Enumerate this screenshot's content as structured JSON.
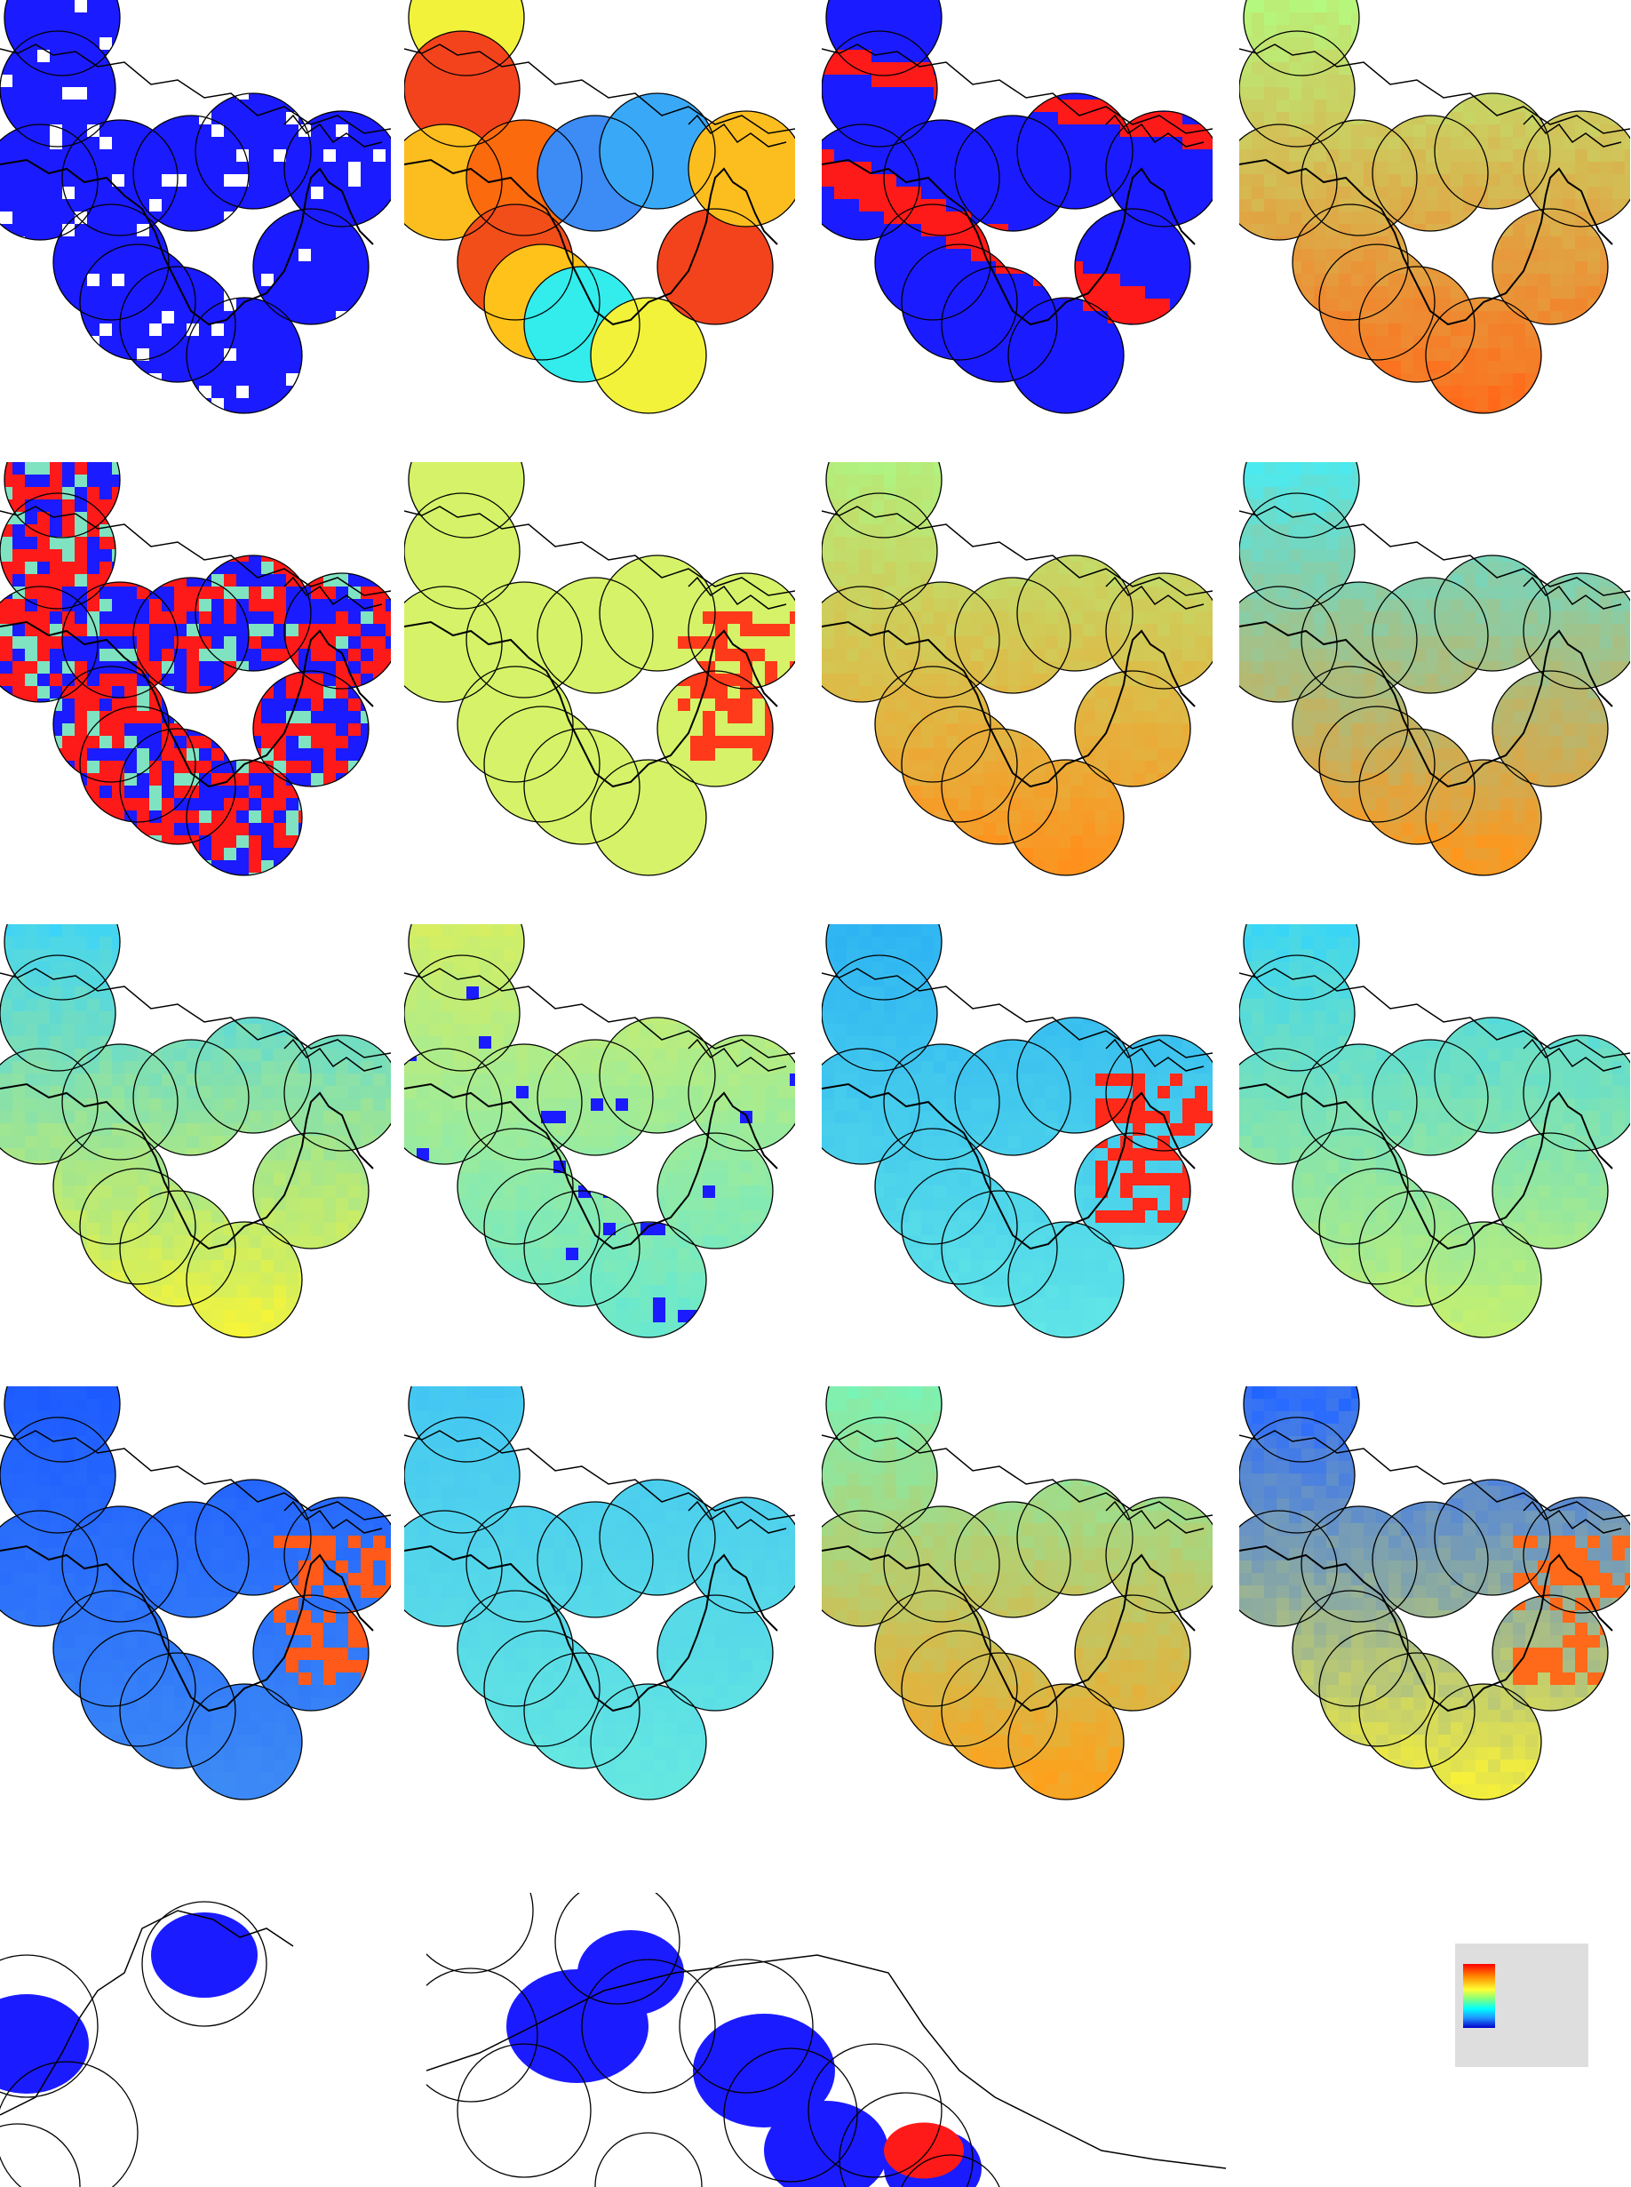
{
  "figure": {
    "title": "",
    "panel_count": 16,
    "extra_panels": 2,
    "colormap": [
      "#0000cc",
      "#1e90ff",
      "#00ffff",
      "#7fff7f",
      "#ffff33",
      "#ff8c00",
      "#ff0000"
    ],
    "background": "#ffffff",
    "circle_stroke": "#000000",
    "legend": {
      "label": ""
    }
  },
  "panels": [
    {
      "id": "r1c1",
      "style": "blue-mask",
      "fill": "#1b1bff"
    },
    {
      "id": "r1c2",
      "style": "discrete-circles",
      "colors": [
        "#f2f23a",
        "#f3431d",
        "#fcbe1f",
        "#fc6a0e",
        "#3d8bf5",
        "#f24e1a",
        "#ffc21a",
        "#39a9f7",
        "#33ecec"
      ]
    },
    {
      "id": "r1c3",
      "style": "blue-red-mask",
      "fill": "#1b1bff",
      "edge": "#ff1a1a"
    },
    {
      "id": "r1c4",
      "style": "gradient",
      "north": "#b8f27a",
      "south": "#ff6a1a"
    },
    {
      "id": "r2c1",
      "style": "random-categorical",
      "colors": [
        "#ff1a1a",
        "#1b1bff",
        "#7fe3c2"
      ]
    },
    {
      "id": "r2c2",
      "style": "gradient",
      "north": "#d6f268",
      "south": "#d6f268",
      "hot": "#ff3a1a"
    },
    {
      "id": "r2c3",
      "style": "gradient",
      "north": "#b3ef7d",
      "south": "#ff901c"
    },
    {
      "id": "r2c4",
      "style": "gradient",
      "north": "#54e6e6",
      "south": "#ff961a"
    },
    {
      "id": "r3c1",
      "style": "gradient",
      "north": "#44d5f0",
      "south": "#f4f43a"
    },
    {
      "id": "r3c2",
      "style": "gradient-spots",
      "north": "#d1ee66",
      "south": "#66e8d1",
      "spot": "#1b1bff"
    },
    {
      "id": "r3c3",
      "style": "gradient-hot",
      "north": "#2fb5f2",
      "south": "#60e6e6",
      "hot": "#ff2a1a"
    },
    {
      "id": "r3c4",
      "style": "gradient",
      "north": "#3fd6f0",
      "south": "#c4f070"
    },
    {
      "id": "r4c1",
      "style": "gradient-mixed",
      "north": "#1e5cff",
      "south": "#3d8bf5",
      "hot": "#ff5a1a"
    },
    {
      "id": "r4c2",
      "style": "gradient",
      "north": "#44c7f2",
      "south": "#66e8e0"
    },
    {
      "id": "r4c3",
      "style": "gradient",
      "north": "#7ff0b0",
      "south": "#ffa01a"
    },
    {
      "id": "r4c4",
      "style": "gradient-hot",
      "north": "#2a6bff",
      "south": "#f7f03a",
      "hot": "#ff6a1a"
    }
  ],
  "bottom_panels": [
    {
      "id": "bottom-left",
      "style": "blue-mask",
      "fill": "#1b1bff"
    },
    {
      "id": "bottom-right",
      "style": "blue-red-mask",
      "fill": "#1b1bff",
      "edge": "#ff1a1a"
    }
  ]
}
